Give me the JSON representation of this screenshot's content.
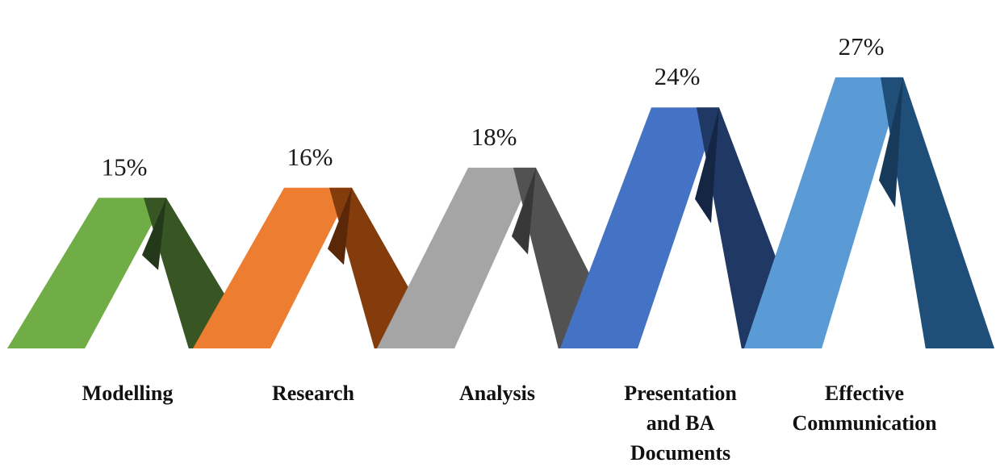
{
  "chart_data": {
    "type": "bar",
    "categories": [
      [
        "Modelling"
      ],
      [
        "Research"
      ],
      [
        "Analysis"
      ],
      [
        "Presentation",
        "and BA",
        "Documents"
      ],
      [
        "Effective",
        "Communication"
      ]
    ],
    "values": [
      15,
      16,
      18,
      24,
      27
    ],
    "value_labels": [
      "15%",
      "16%",
      "18%",
      "24%",
      "27%"
    ],
    "colors": {
      "front": [
        "#70ad47",
        "#ed7d31",
        "#a5a5a5",
        "#4472c4",
        "#5b9bd5"
      ],
      "back": [
        "#375623",
        "#843c0c",
        "#525252",
        "#203864",
        "#1f4e79"
      ],
      "shade": [
        "#24381a",
        "#5a2808",
        "#383838",
        "#152645",
        "#173a5a"
      ]
    },
    "title": "",
    "xlabel": "",
    "ylabel": "",
    "grid": false,
    "legend": "none"
  }
}
